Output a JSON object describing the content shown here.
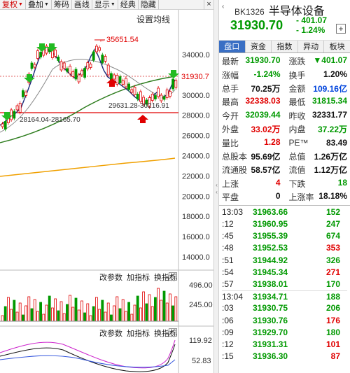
{
  "toolbar": {
    "items": [
      {
        "label": "复权",
        "active": true
      },
      {
        "label": "叠加"
      },
      {
        "label": "筹码"
      },
      {
        "label": "画线"
      },
      {
        "label": "显示"
      },
      {
        "label": "经典"
      },
      {
        "label": "隐藏"
      }
    ],
    "close": "×"
  },
  "chart": {
    "settings_label": "设置均线",
    "y_axis_labels": [
      "34000.0",
      "32000.0",
      "30000.0",
      "28000.0",
      "26000.0",
      "24000.0",
      "22000.0",
      "20000.0",
      "18000.0",
      "16000.0",
      "14000.0"
    ],
    "current_price_tag": "31930.7",
    "peak_annotation": "35651.54",
    "low_annotation_left": "28164.04-28165.70",
    "low_annotation_right": "29631.28-30216.91",
    "volume_panel": {
      "buttons": [
        "改参数",
        "加指标",
        "换指标"
      ],
      "axis_labels": [
        "496.00",
        "245.00"
      ]
    },
    "indicator_panel": {
      "buttons": [
        "改参数",
        "加指标",
        "换指标"
      ],
      "axis_labels": [
        "119.92",
        "52.83"
      ]
    }
  },
  "panel": {
    "code": "BK1326",
    "name": "半导体设备",
    "price": "31930.70",
    "change": "- 401.07",
    "change_pct": "- 1.24%",
    "add_label": "+",
    "tabs": [
      {
        "label": "盘口",
        "active": true
      },
      {
        "label": "资金"
      },
      {
        "label": "指数"
      },
      {
        "label": "异动"
      },
      {
        "label": "板块"
      }
    ],
    "quote_rows": [
      [
        {
          "label": "最新",
          "value": "31930.70",
          "color": "green"
        },
        {
          "label": "涨跌",
          "value": "▼401.07",
          "color": "green"
        }
      ],
      [
        {
          "label": "涨幅",
          "value": "-1.24%",
          "color": "green"
        },
        {
          "label": "换手",
          "value": "1.20%",
          "color": "black"
        }
      ],
      [
        {
          "label": "总手",
          "value": "70.25万",
          "color": "black"
        },
        {
          "label": "金额",
          "value": "109.16亿",
          "color": "blue"
        }
      ],
      [
        {
          "label": "最高",
          "value": "32338.03",
          "color": "red"
        },
        {
          "label": "最低",
          "value": "31815.34",
          "color": "green"
        }
      ],
      [
        {
          "label": "今开",
          "value": "32039.44",
          "color": "green"
        },
        {
          "label": "昨收",
          "value": "32331.77",
          "color": "black"
        }
      ],
      [
        {
          "label": "外盘",
          "value": "33.02万",
          "color": "red"
        },
        {
          "label": "内盘",
          "value": "37.22万",
          "color": "green"
        }
      ],
      [
        {
          "label": "量比",
          "value": "1.28",
          "color": "red"
        },
        {
          "label": "PE™",
          "value": "83.49",
          "color": "black"
        }
      ],
      [
        {
          "label": "总股本",
          "value": "95.69亿",
          "color": "black"
        },
        {
          "label": "总值",
          "value": "1.26万亿",
          "color": "black"
        }
      ],
      [
        {
          "label": "流通股",
          "value": "58.57亿",
          "color": "black"
        },
        {
          "label": "流值",
          "value": "1.12万亿",
          "color": "black"
        }
      ],
      [
        {
          "label": "上涨",
          "value": "4",
          "color": "red"
        },
        {
          "label": "下跌",
          "value": "18",
          "color": "green"
        }
      ],
      [
        {
          "label": "平盘",
          "value": "0",
          "color": "black"
        },
        {
          "label": "上涨率",
          "value": "18.18%",
          "color": "black"
        }
      ]
    ],
    "ticks": [
      {
        "time": "13:03",
        "price": "31963.66",
        "vol": "152",
        "vol_color": "green"
      },
      {
        "time": ":12",
        "price": "31960.95",
        "vol": "247",
        "vol_color": "green"
      },
      {
        "time": ":45",
        "price": "31955.39",
        "vol": "674",
        "vol_color": "green"
      },
      {
        "time": ":48",
        "price": "31952.53",
        "vol": "353",
        "vol_color": "red"
      },
      {
        "time": ":51",
        "price": "31944.92",
        "vol": "326",
        "vol_color": "green"
      },
      {
        "time": ":54",
        "price": "31945.34",
        "vol": "271",
        "vol_color": "red"
      },
      {
        "time": ":57",
        "price": "31938.01",
        "vol": "170",
        "vol_color": "green"
      },
      {
        "time": "13:04",
        "price": "31934.71",
        "vol": "188",
        "vol_color": "green",
        "sep": true
      },
      {
        "time": ":03",
        "price": "31930.75",
        "vol": "206",
        "vol_color": "green"
      },
      {
        "time": ":06",
        "price": "31930.76",
        "vol": "176",
        "vol_color": "red"
      },
      {
        "time": ":09",
        "price": "31929.70",
        "vol": "180",
        "vol_color": "green"
      },
      {
        "time": ":12",
        "price": "31931.31",
        "vol": "101",
        "vol_color": "red"
      },
      {
        "time": ":15",
        "price": "31936.30",
        "vol": "87",
        "vol_color": "red"
      }
    ]
  },
  "colors": {
    "up": "#e00000",
    "down": "#009900",
    "accent": "#3a6fc4"
  }
}
